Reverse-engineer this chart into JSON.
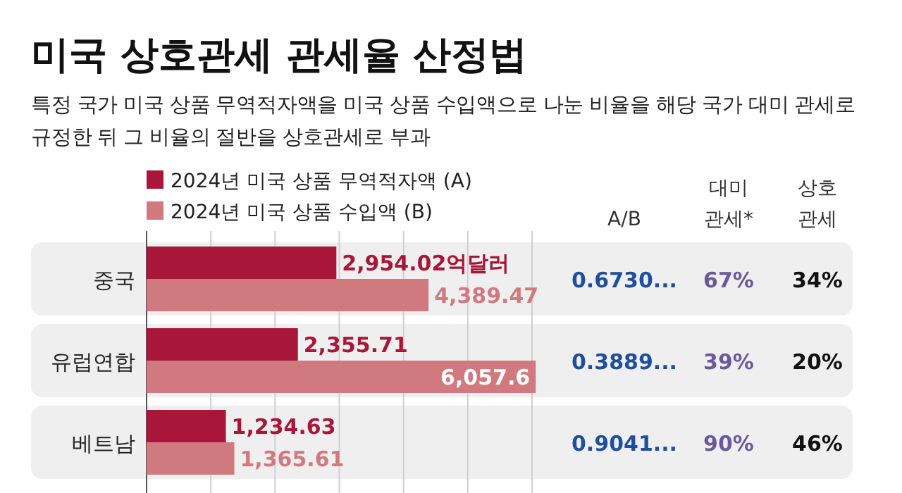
{
  "chart_data": [
    {
      "type": "bar",
      "orientation": "horizontal",
      "title": "미국 상호관세 관세율 산정법",
      "subtitle": "특정 국가 미국 상품 무역적자액을 미국 상품 수입액으로 나눈 비율을 해당 국가 대미 관세로 규정한 뒤 그 비율의 절반을 상호관세로 부과",
      "categories": [
        "중국",
        "유럽연합",
        "베트남"
      ],
      "series": [
        {
          "name": "2024년 미국 상품 무역적자액 (A)",
          "color": "#a8173a",
          "values": [
            2954.02,
            2355.71,
            1234.63
          ],
          "value_labels": [
            "2,954.02억달러",
            "2,355.71",
            "1,234.63"
          ]
        },
        {
          "name": "2024년 미국 상품 수입액 (B)",
          "color": "#d07a80",
          "values": [
            4389.47,
            6057.6,
            1365.61
          ],
          "value_labels": [
            "4,389.47",
            "6,057.6",
            "1,365.61"
          ]
        }
      ],
      "xticks": [
        {
          "value": 0,
          "label": null
        },
        {
          "value": 1000,
          "label": null
        },
        {
          "value": 2000,
          "label": null
        },
        {
          "value": 3000,
          "label": null
        },
        {
          "value": 4000,
          "label": null
        },
        {
          "value": 5000,
          "label": null
        },
        {
          "value": 6000,
          "label": null
        }
      ],
      "bands": [
        {
          "axis": "y",
          "from": "중국",
          "to": "중국",
          "color": "#efefef"
        },
        {
          "axis": "y",
          "from": "유럽연합",
          "to": "유럽연합",
          "color": "#efefef"
        },
        {
          "axis": "y",
          "from": "베트남",
          "to": "베트남",
          "color": "#efefef"
        }
      ],
      "grid": "x",
      "legend": "top left",
      "tick_labels": "y"
    },
    {
      "type": "other",
      "categories": [
        "A/B",
        "대미 관세*",
        "상호 관세"
      ],
      "colors": [
        "#1f4e9c",
        "#6a5a9c",
        "#111111"
      ],
      "cell_labels": [
        [
          "0.6730...",
          "67%",
          "34%"
        ],
        [
          "0.3889...",
          "39%",
          "20%"
        ],
        [
          "0.9041...",
          "90%",
          "46%"
        ]
      ]
    }
  ]
}
